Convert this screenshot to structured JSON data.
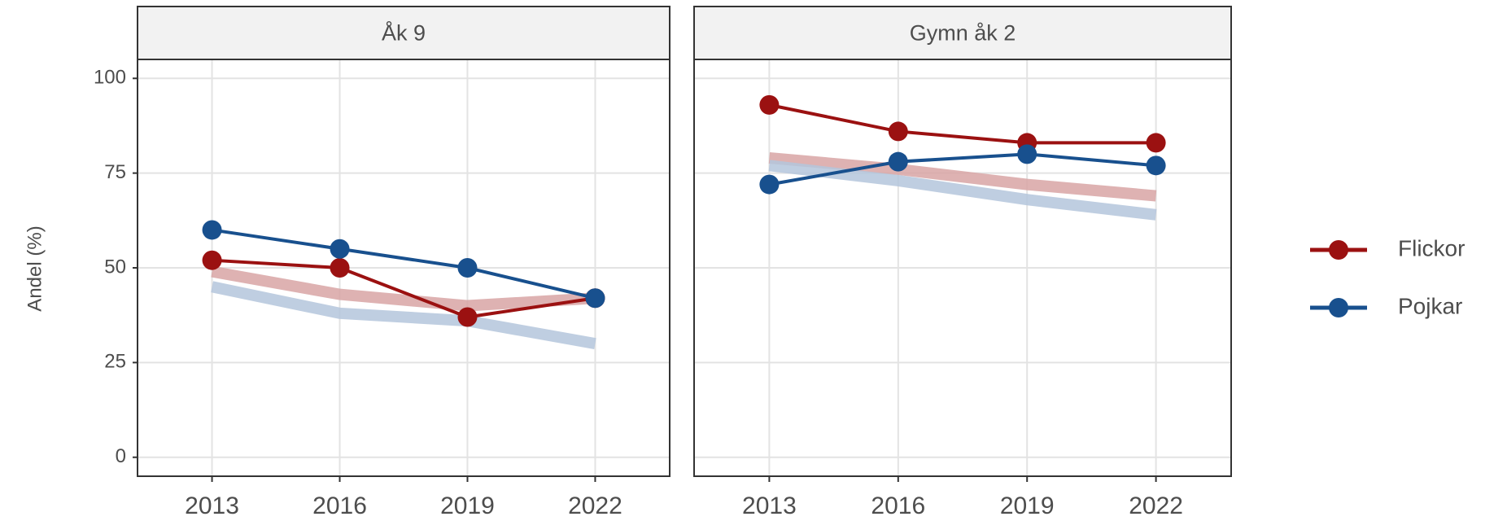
{
  "chart_data": [
    {
      "type": "line",
      "title": "Åk 9",
      "ylabel": "Andel (%)",
      "x": [
        2013,
        2016,
        2019,
        2022
      ],
      "series": [
        {
          "name": "Flickor",
          "color": "#9b1111",
          "values": [
            52,
            50,
            37,
            42
          ]
        },
        {
          "name": "Pojkar",
          "color": "#18508e",
          "values": [
            60,
            55,
            50,
            42
          ]
        }
      ],
      "reference": [
        {
          "color": "#d8a4a4",
          "values": [
            49,
            43,
            40,
            42
          ]
        },
        {
          "color": "#b4c6dc",
          "values": [
            45,
            38,
            36,
            30
          ]
        }
      ],
      "xlim": [
        2011.25,
        2023.75
      ],
      "xticks": [
        2013,
        2016,
        2019,
        2022
      ],
      "ylim": [
        -5,
        105
      ],
      "yticks": [
        0,
        25,
        50,
        75,
        100
      ],
      "grid": true
    },
    {
      "type": "line",
      "title": "Gymn åk 2",
      "x": [
        2013,
        2016,
        2019,
        2022
      ],
      "series": [
        {
          "name": "Flickor",
          "color": "#9b1111",
          "values": [
            93,
            86,
            83,
            83
          ]
        },
        {
          "name": "Pojkar",
          "color": "#18508e",
          "values": [
            72,
            78,
            80,
            77
          ]
        }
      ],
      "reference": [
        {
          "color": "#d8a4a4",
          "values": [
            79,
            76,
            72,
            69
          ]
        },
        {
          "color": "#b4c6dc",
          "values": [
            77,
            73,
            68,
            64
          ]
        }
      ],
      "xlim": [
        2011.25,
        2023.75
      ],
      "xticks": [
        2013,
        2016,
        2019,
        2022
      ],
      "ylim": [
        -5,
        105
      ],
      "grid": true
    }
  ]
}
